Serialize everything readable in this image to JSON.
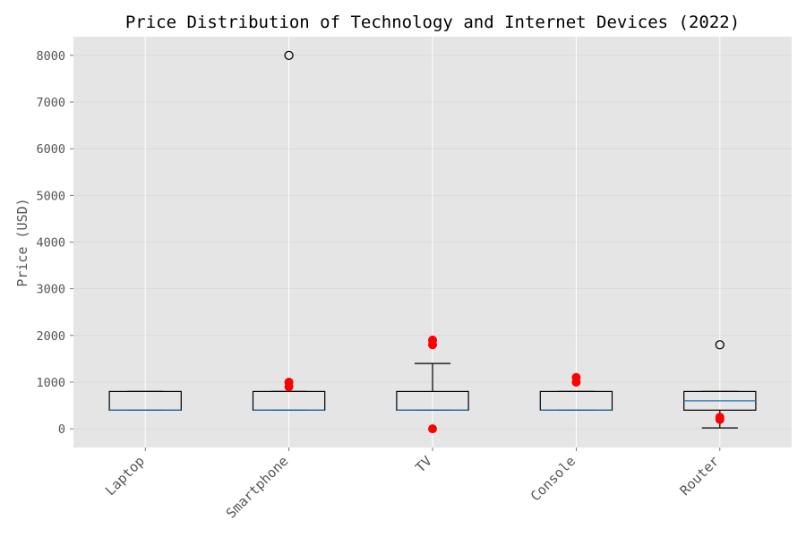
{
  "chart_data": {
    "type": "boxplot",
    "title": "Price Distribution of Technology and Internet Devices (2022)",
    "xlabel": "",
    "ylabel": "Price (USD)",
    "ylim": [
      -400,
      8400
    ],
    "yticks": [
      0,
      1000,
      2000,
      3000,
      4000,
      5000,
      6000,
      7000,
      8000
    ],
    "grid": true,
    "categories": [
      "Laptop",
      "Smartphone",
      "TV",
      "Console",
      "Router"
    ],
    "boxes": [
      {
        "name": "Laptop",
        "whisker_low": 400,
        "q1": 400,
        "median": 400,
        "q3": 800,
        "whisker_high": 800,
        "fliers": [],
        "red_points": []
      },
      {
        "name": "Smartphone",
        "whisker_low": 400,
        "q1": 400,
        "median": 400,
        "q3": 800,
        "whisker_high": 800,
        "fliers": [
          8000
        ],
        "red_points": [
          900,
          1000
        ]
      },
      {
        "name": "TV",
        "whisker_low": 400,
        "q1": 400,
        "median": 400,
        "q3": 800,
        "whisker_high": 1400,
        "fliers": [],
        "red_points": [
          0,
          1800,
          1900
        ]
      },
      {
        "name": "Console",
        "whisker_low": 400,
        "q1": 400,
        "median": 400,
        "q3": 800,
        "whisker_high": 800,
        "fliers": [],
        "red_points": [
          1000,
          1100
        ]
      },
      {
        "name": "Router",
        "whisker_low": 20,
        "q1": 400,
        "median": 600,
        "q3": 800,
        "whisker_high": 800,
        "fliers": [
          1800
        ],
        "red_points": [
          200,
          250
        ]
      }
    ],
    "colors": {
      "plot_bg": "#e5e5e5",
      "grid": "#d6d6d6",
      "box": "#000000",
      "median": "#1f77b4",
      "flier": "#000000",
      "red_point": "#ff0000"
    }
  }
}
